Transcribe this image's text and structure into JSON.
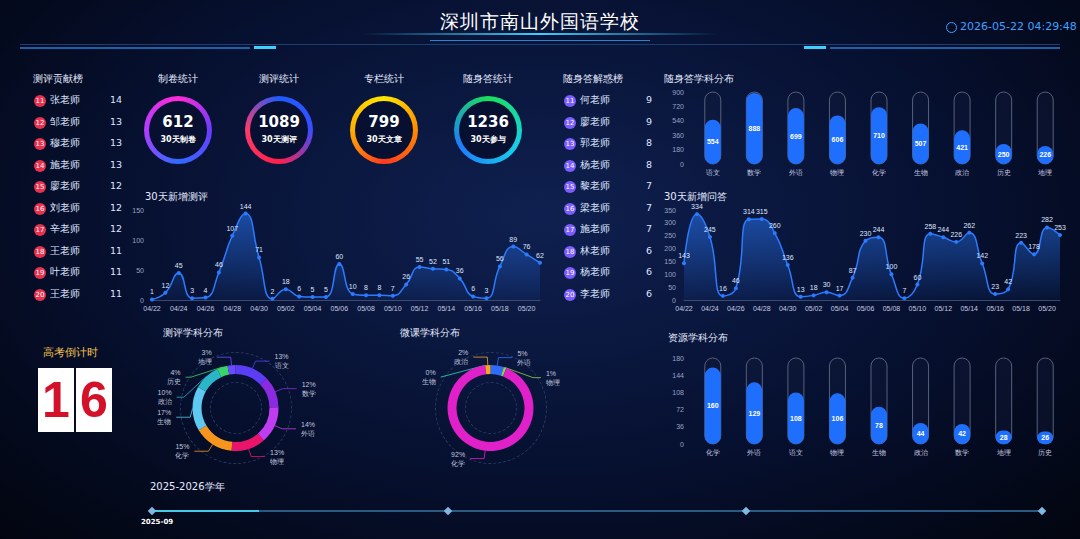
{
  "header": {
    "title": "深圳市南山外国语学校",
    "datetime": "2026-05-22 04:29:48"
  },
  "rankings": [
    {
      "title": "测评贡献榜",
      "rows": [
        {
          "rank": 11,
          "name": "张老师",
          "value": 14
        },
        {
          "rank": 12,
          "name": "邹老师",
          "value": 13
        },
        {
          "rank": 13,
          "name": "穆老师",
          "value": 13
        },
        {
          "rank": 14,
          "name": "施老师",
          "value": 13
        },
        {
          "rank": 15,
          "name": "廖老师",
          "value": 12
        },
        {
          "rank": 16,
          "name": "刘老师",
          "value": 12
        },
        {
          "rank": 17,
          "name": "辛老师",
          "value": 12
        },
        {
          "rank": 18,
          "name": "王老师",
          "value": 11
        },
        {
          "rank": 19,
          "name": "叶老师",
          "value": 11
        },
        {
          "rank": 20,
          "name": "王老师",
          "value": 11
        }
      ]
    },
    {
      "title": "随身答解惑榜",
      "rows": [
        {
          "rank": 11,
          "name": "何老师",
          "value": 9
        },
        {
          "rank": 12,
          "name": "廖老师",
          "value": 9
        },
        {
          "rank": 13,
          "name": "郭老师",
          "value": 8
        },
        {
          "rank": 14,
          "name": "杨老师",
          "value": 8
        },
        {
          "rank": 15,
          "name": "黎老师",
          "value": 7
        },
        {
          "rank": 16,
          "name": "梁老师",
          "value": 7
        },
        {
          "rank": 17,
          "name": "施老师",
          "value": 7
        },
        {
          "rank": 18,
          "name": "林老师",
          "value": 6
        },
        {
          "rank": 19,
          "name": "杨老师",
          "value": 6
        },
        {
          "rank": 20,
          "name": "李老师",
          "value": 6
        }
      ]
    }
  ],
  "stats": [
    {
      "title": "制卷统计",
      "value": 612,
      "label": "30天制卷"
    },
    {
      "title": "测评统计",
      "value": 1089,
      "label": "30天测评"
    },
    {
      "title": "专栏统计",
      "value": 799,
      "label": "30天文章"
    },
    {
      "title": "随身答统计",
      "value": 1236,
      "label": "30天参与"
    }
  ],
  "countdown": {
    "title": "高考倒计时",
    "value": 16
  },
  "timeline": {
    "title": "2025-2026学年",
    "start": "2025-09"
  },
  "chart_data": [
    {
      "type": "bar",
      "title": "随身答学科分布",
      "categories": [
        "语文",
        "数学",
        "外语",
        "物理",
        "化学",
        "生物",
        "政治",
        "历史",
        "地理"
      ],
      "values": [
        554,
        888,
        699,
        606,
        710,
        507,
        421,
        250,
        226
      ],
      "color": "#1f6fff",
      "ylim": [
        0,
        900
      ],
      "yticks": [
        0,
        180,
        360,
        540,
        720,
        900
      ],
      "grid": false,
      "data_labels": true
    },
    {
      "type": "line",
      "title": "30天新增测评",
      "categories": [
        "04/22",
        null,
        "04/24",
        null,
        "04/26",
        null,
        "04/28",
        null,
        "04/30",
        null,
        "05/02",
        null,
        "05/04",
        null,
        "05/06",
        null,
        "05/08",
        null,
        "05/10",
        null,
        "05/12",
        null,
        "05/14",
        null,
        "05/16",
        null,
        "05/18",
        null,
        "05/20",
        null
      ],
      "values": [
        1,
        12,
        45,
        3,
        4,
        46,
        107,
        144,
        71,
        2,
        18,
        6,
        5,
        5,
        60,
        10,
        8,
        8,
        7,
        26,
        55,
        52,
        51,
        36,
        6,
        3,
        56,
        89,
        76,
        62
      ],
      "color": "#2b7bff",
      "ylim": [
        0,
        150
      ],
      "yticks": [
        0,
        50,
        100,
        150
      ],
      "grid": false,
      "data_labels": true,
      "marker": "circle"
    },
    {
      "type": "line",
      "title": "30天新增问答",
      "categories": [
        "04/22",
        null,
        "04/24",
        null,
        "04/26",
        null,
        "04/28",
        null,
        "04/30",
        null,
        "05/02",
        null,
        "05/04",
        null,
        "05/06",
        null,
        "05/08",
        null,
        "05/10",
        null,
        "05/12",
        null,
        "05/14",
        null,
        "05/16",
        null,
        "05/18",
        null,
        "05/20",
        null
      ],
      "values": [
        143,
        334,
        245,
        16,
        46,
        314,
        315,
        260,
        136,
        13,
        18,
        30,
        17,
        87,
        230,
        244,
        100,
        7,
        60,
        258,
        244,
        226,
        262,
        142,
        23,
        42,
        223,
        178,
        282,
        253
      ],
      "color": "#2b7bff",
      "ylim": [
        0,
        350
      ],
      "yticks": [
        0,
        50,
        100,
        150,
        200,
        250,
        300,
        350
      ],
      "grid": false,
      "data_labels": true,
      "marker": "circle"
    },
    {
      "type": "pie",
      "title": "测评学科分布",
      "categories": [
        "语文",
        "数学",
        "外语",
        "物理",
        "化学",
        "生物",
        "政治",
        "历史",
        "地理"
      ],
      "values": [
        13,
        12,
        14,
        13,
        15,
        17,
        10,
        4,
        3
      ],
      "value_labels": [
        "13%",
        "12%",
        "14%",
        "13%",
        "15%",
        "17%",
        "10%",
        "4%",
        "3%"
      ],
      "colors": [
        "#5b3df5",
        "#8a2be2",
        "#c03cf0",
        "#e8156b",
        "#f7941d",
        "#5ec8f0",
        "#2bb5c8",
        "#3ad36b",
        "#6a4cff"
      ],
      "data_labels": true
    },
    {
      "type": "pie",
      "title": "微课学科分布",
      "categories": [
        "外语",
        "物理",
        "化学",
        "生物",
        "政治"
      ],
      "values": [
        5,
        1,
        92,
        0,
        2
      ],
      "value_labels": [
        "5%",
        "1%",
        "92%",
        "0%",
        "2%"
      ],
      "colors": [
        "#2d6cff",
        "#8fd14f",
        "#e020c8",
        "#3ad3c0",
        "#f5a623"
      ],
      "data_labels": true
    },
    {
      "type": "bar",
      "title": "资源学科分布",
      "categories": [
        "化学",
        "外语",
        "语文",
        "物理",
        "生物",
        "政治",
        "数学",
        "地理",
        "历史"
      ],
      "values": [
        160,
        129,
        108,
        106,
        78,
        44,
        42,
        28,
        26
      ],
      "color": "#1f6fff",
      "ylim": [
        0,
        180
      ],
      "yticks": [
        0,
        36,
        72,
        108,
        144,
        180
      ],
      "grid": false,
      "data_labels": true
    }
  ]
}
